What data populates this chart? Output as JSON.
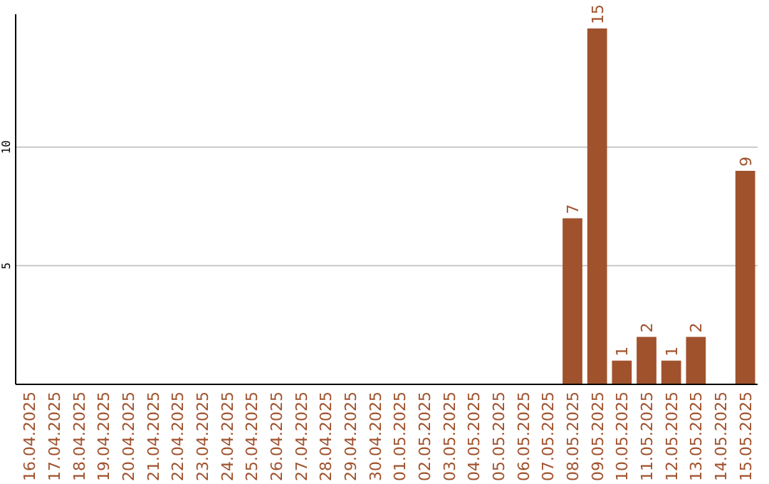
{
  "chart_data": {
    "type": "bar",
    "categories": [
      "16.04.2025",
      "17.04.2025",
      "18.04.2025",
      "19.04.2025",
      "20.04.2025",
      "21.04.2025",
      "22.04.2025",
      "23.04.2025",
      "24.04.2025",
      "25.04.2025",
      "26.04.2025",
      "27.04.2025",
      "28.04.2025",
      "29.04.2025",
      "30.04.2025",
      "01.05.2025",
      "02.05.2025",
      "03.05.2025",
      "04.05.2025",
      "05.05.2025",
      "06.05.2025",
      "07.05.2025",
      "08.05.2025",
      "09.05.2025",
      "10.05.2025",
      "11.05.2025",
      "12.05.2025",
      "13.05.2025",
      "14.05.2025",
      "15.05.2025"
    ],
    "values": [
      0,
      0,
      0,
      0,
      0,
      0,
      0,
      0,
      0,
      0,
      0,
      0,
      0,
      0,
      0,
      0,
      0,
      0,
      0,
      0,
      0,
      0,
      7,
      15,
      1,
      2,
      1,
      2,
      0,
      9
    ],
    "value_labels": [
      null,
      null,
      null,
      null,
      null,
      null,
      null,
      null,
      null,
      null,
      null,
      null,
      null,
      null,
      null,
      null,
      null,
      null,
      null,
      null,
      null,
      null,
      "7",
      "15",
      "1",
      "2",
      "1",
      "2",
      null,
      "9"
    ],
    "color": "#a0522d",
    "ylim": [
      0,
      15.6
    ],
    "yticks": [
      5,
      10
    ],
    "grid": "y"
  }
}
